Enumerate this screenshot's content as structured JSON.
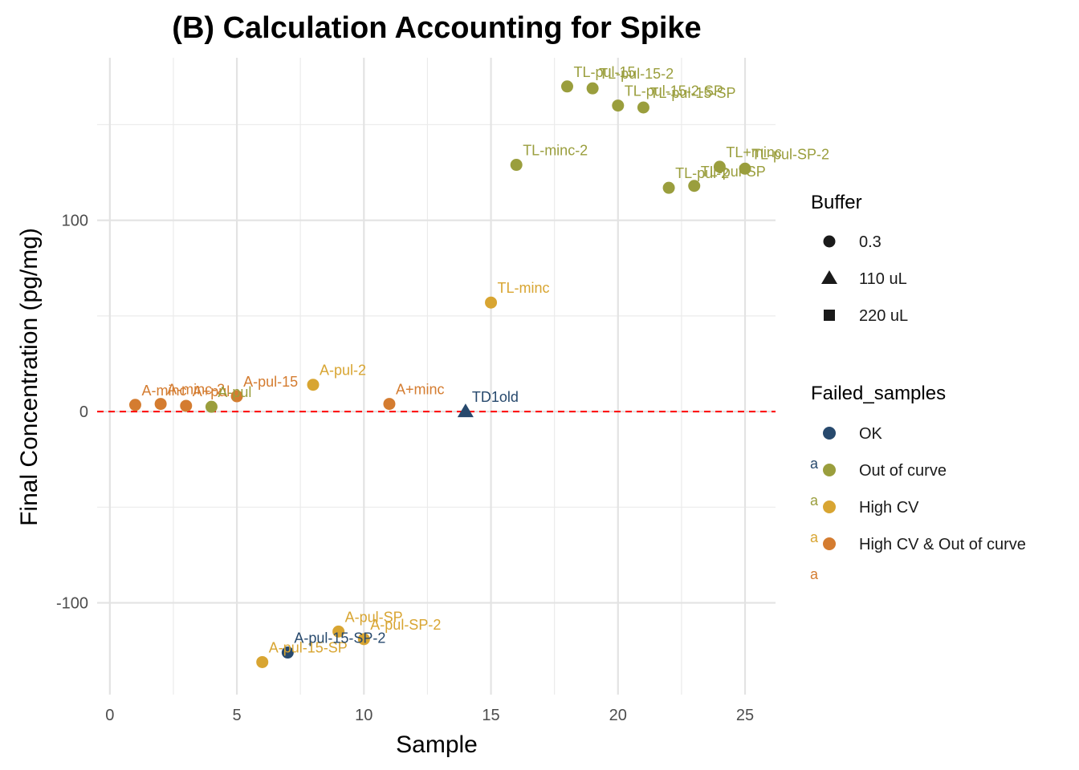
{
  "chart_data": {
    "type": "scatter",
    "title": "(B) Calculation Accounting for Spike",
    "xlabel": "Sample",
    "ylabel": "Final Concentration (pg/mg)",
    "xlim": [
      -0.5,
      26.2
    ],
    "ylim": [
      -148,
      185
    ],
    "xticks": [
      0,
      5,
      10,
      15,
      20,
      25
    ],
    "yticks": [
      -100,
      0,
      100
    ],
    "reference_line": {
      "y": 0,
      "color": "#ff0000",
      "style": "dashed"
    },
    "grid": true,
    "colors": {
      "OK": "#27496d",
      "Out of curve": "#9a9e3d",
      "High CV": "#d8a532",
      "High CV & Out of curve": "#d47c30"
    },
    "points": [
      {
        "x": 1,
        "y": 3.5,
        "label": "A-minc",
        "group": "High CV & Out of curve",
        "shape": "circle"
      },
      {
        "x": 2,
        "y": 4,
        "label": "A-minc-2",
        "group": "High CV & Out of curve",
        "shape": "circle"
      },
      {
        "x": 3,
        "y": 3,
        "label": "A+pul",
        "group": "High CV & Out of curve",
        "shape": "circle"
      },
      {
        "x": 4,
        "y": 2.5,
        "label": "A-pul",
        "group": "Out of curve",
        "shape": "circle"
      },
      {
        "x": 5,
        "y": 8,
        "label": "A-pul-15",
        "group": "High CV & Out of curve",
        "shape": "circle"
      },
      {
        "x": 6,
        "y": -131,
        "label": "A-pul-15-SP",
        "group": "High CV",
        "shape": "circle"
      },
      {
        "x": 7,
        "y": -126,
        "label": "A-pul-15-SP-2",
        "group": "OK",
        "shape": "circle"
      },
      {
        "x": 8,
        "y": 14,
        "label": "A-pul-2",
        "group": "High CV",
        "shape": "circle"
      },
      {
        "x": 9,
        "y": -115,
        "label": "A-pul-SP",
        "group": "High CV",
        "shape": "circle"
      },
      {
        "x": 10,
        "y": -119,
        "label": "A-pul-SP-2",
        "group": "High CV",
        "shape": "circle"
      },
      {
        "x": 11,
        "y": 4,
        "label": "A+minc",
        "group": "High CV & Out of curve",
        "shape": "circle"
      },
      {
        "x": 14,
        "y": 0,
        "label": "TD1old",
        "group": "OK",
        "shape": "triangle"
      },
      {
        "x": 15,
        "y": 57,
        "label": "TL-minc",
        "group": "High CV",
        "shape": "circle"
      },
      {
        "x": 16,
        "y": 129,
        "label": "TL-minc-2",
        "group": "Out of curve",
        "shape": "circle"
      },
      {
        "x": 18,
        "y": 170,
        "label": "TL-pul-15",
        "group": "Out of curve",
        "shape": "circle"
      },
      {
        "x": 19,
        "y": 169,
        "label": "TL-pul-15-2",
        "group": "Out of curve",
        "shape": "circle"
      },
      {
        "x": 20,
        "y": 160,
        "label": "TL-pul-15-2-SP",
        "group": "Out of curve",
        "shape": "circle"
      },
      {
        "x": 21,
        "y": 159,
        "label": "TL-pul-15-SP",
        "group": "Out of curve",
        "shape": "circle"
      },
      {
        "x": 22,
        "y": 117,
        "label": "TL-pul-2",
        "group": "Out of curve",
        "shape": "circle"
      },
      {
        "x": 23,
        "y": 118,
        "label": "TL-pul-SP",
        "group": "Out of curve",
        "shape": "circle"
      },
      {
        "x": 24,
        "y": 128,
        "label": "TL+minc",
        "group": "Out of curve",
        "shape": "circle"
      },
      {
        "x": 25,
        "y": 127,
        "label": "TL-pul-SP-2",
        "group": "Out of curve",
        "shape": "circle"
      }
    ],
    "legend": {
      "placement": "right",
      "buffer": {
        "title": "Buffer",
        "items": [
          {
            "label": "0.3",
            "shape": "circle"
          },
          {
            "label": "110 uL",
            "shape": "triangle"
          },
          {
            "label": "220 uL",
            "shape": "square"
          }
        ]
      },
      "failed": {
        "title": "Failed_samples",
        "items": [
          {
            "label": "OK"
          },
          {
            "label": "Out of curve"
          },
          {
            "label": "High CV"
          },
          {
            "label": "High CV & Out of curve"
          }
        ],
        "text_key_glyph": "a"
      }
    }
  }
}
